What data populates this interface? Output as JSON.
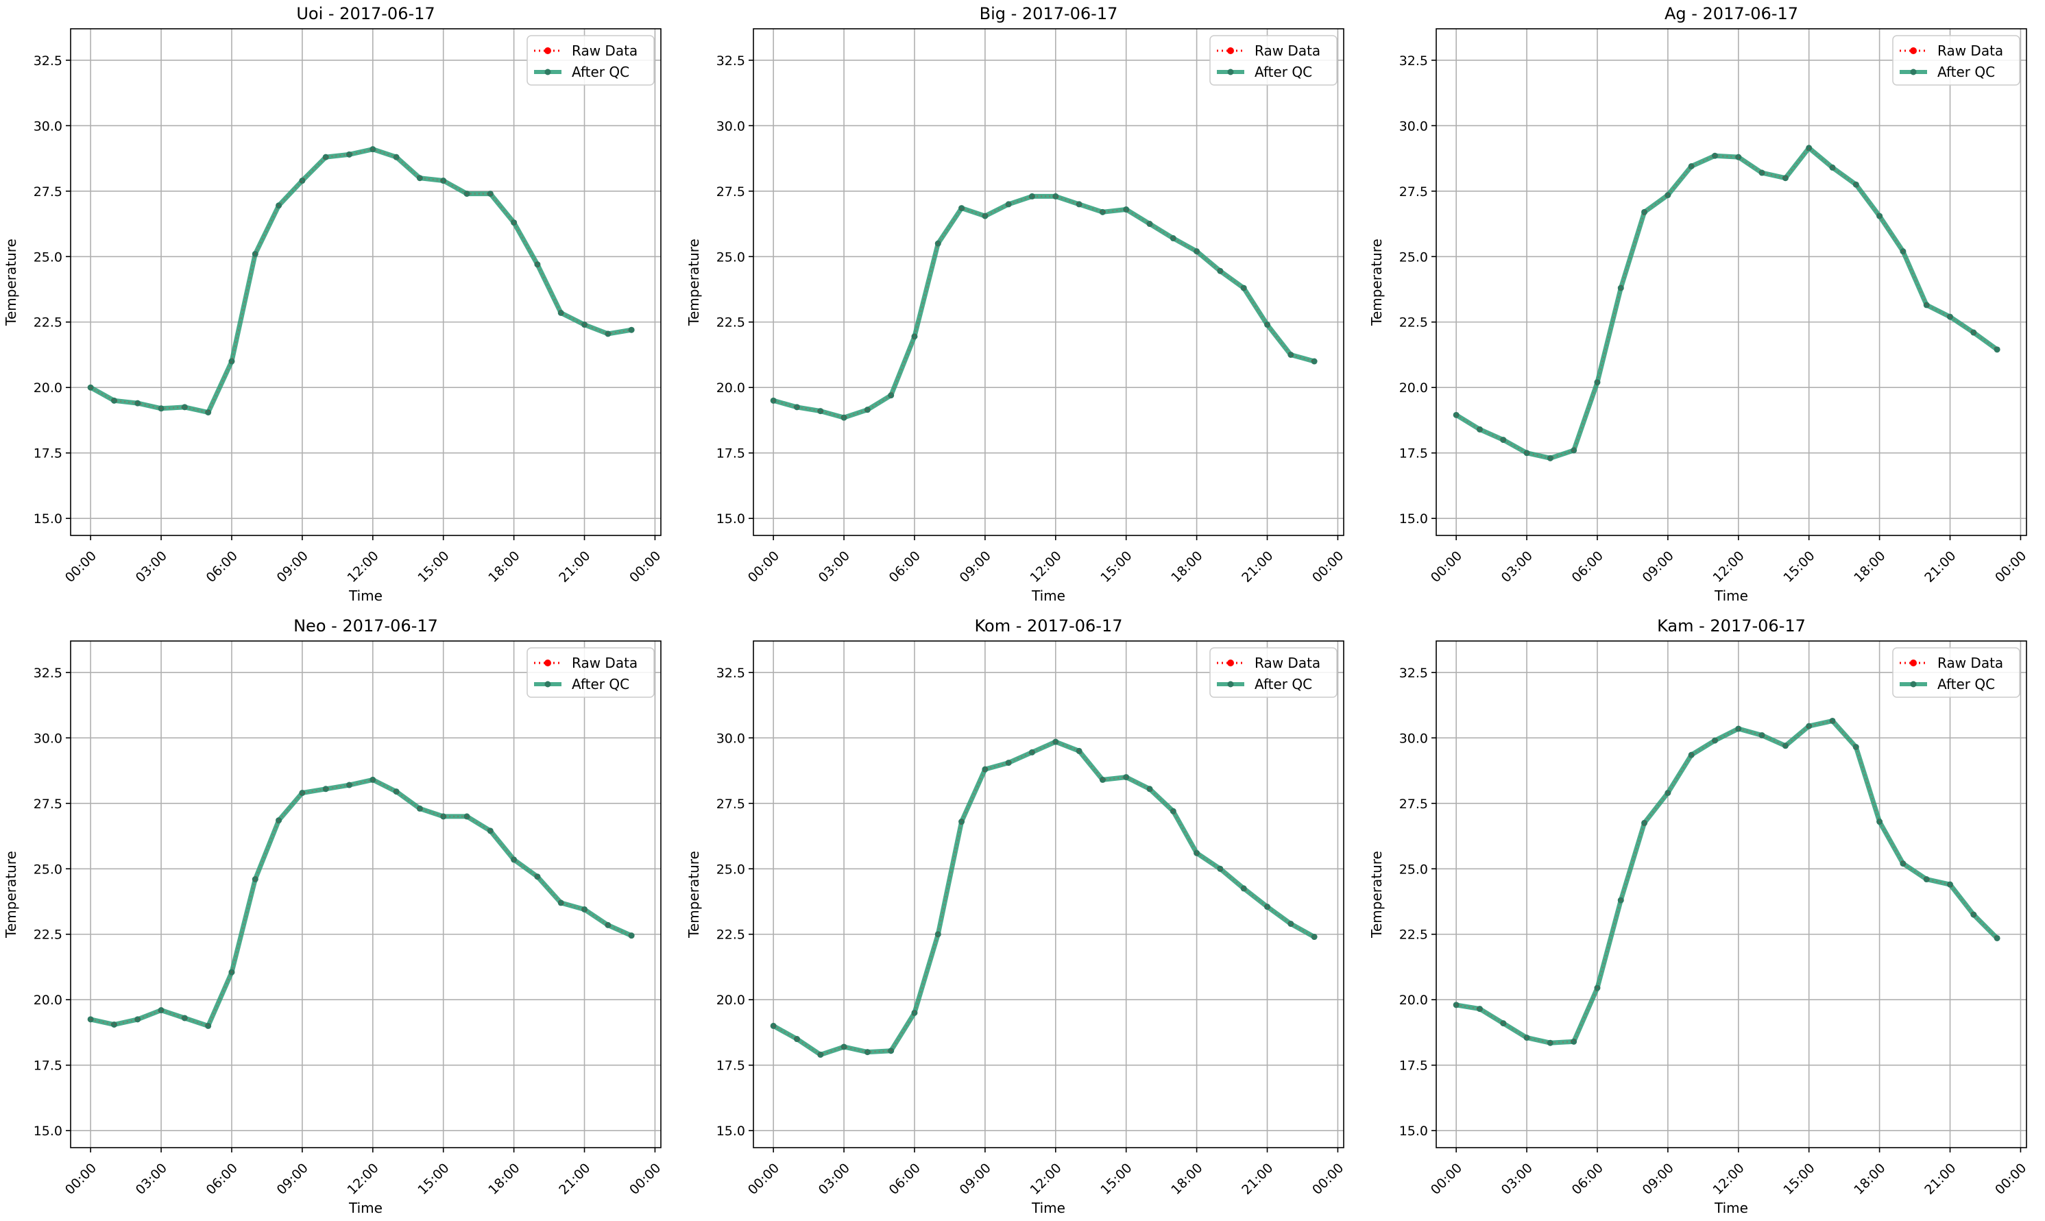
{
  "colors": {
    "raw": "#ff0000",
    "after_qc": "#2a9d78",
    "after_qc_marker": "#2f7a62",
    "grid": "#b0b0b0",
    "axis": "#000000",
    "legend_border": "#cccccc"
  },
  "chart_data": [
    {
      "type": "line",
      "title": "Uoi - 2017-06-17",
      "xlabel": "Time",
      "ylabel": "Temperature",
      "xlim": [
        "-00:51",
        "24:15"
      ],
      "ylim": [
        14.35,
        33.7
      ],
      "grid": true,
      "legend_placement": "top-right",
      "x_ticks": [
        "00:00",
        "03:00",
        "06:00",
        "09:00",
        "12:00",
        "15:00",
        "18:00",
        "21:00",
        "00:00"
      ],
      "y_ticks": [
        "15.0",
        "17.5",
        "20.0",
        "22.5",
        "25.0",
        "27.5",
        "30.0",
        "32.5"
      ],
      "x": [
        "00:00",
        "01:00",
        "02:00",
        "03:00",
        "04:00",
        "05:00",
        "06:00",
        "07:00",
        "08:00",
        "09:00",
        "10:00",
        "11:00",
        "12:00",
        "13:00",
        "14:00",
        "15:00",
        "16:00",
        "17:00",
        "18:00",
        "19:00",
        "20:00",
        "21:00",
        "22:00",
        "23:00"
      ],
      "series": [
        {
          "name": "Raw Data",
          "values": [
            20.0,
            19.5,
            19.4,
            19.2,
            19.25,
            19.05,
            21.0,
            25.1,
            26.95,
            27.9,
            28.8,
            28.9,
            29.1,
            28.8,
            28.0,
            27.9,
            27.4,
            27.4,
            26.3,
            24.7,
            22.85,
            22.4,
            22.05,
            22.2
          ]
        },
        {
          "name": "After QC",
          "values": [
            20.0,
            19.5,
            19.4,
            19.2,
            19.25,
            19.05,
            21.0,
            25.1,
            26.95,
            27.9,
            28.8,
            28.9,
            29.1,
            28.8,
            28.0,
            27.9,
            27.4,
            27.4,
            26.3,
            24.7,
            22.85,
            22.4,
            22.05,
            22.2
          ]
        }
      ]
    },
    {
      "type": "line",
      "title": "Big - 2017-06-17",
      "xlabel": "Time",
      "ylabel": "Temperature",
      "xlim": [
        "-00:51",
        "24:15"
      ],
      "ylim": [
        14.35,
        33.7
      ],
      "grid": true,
      "legend_placement": "top-right",
      "x_ticks": [
        "00:00",
        "03:00",
        "06:00",
        "09:00",
        "12:00",
        "15:00",
        "18:00",
        "21:00",
        "00:00"
      ],
      "y_ticks": [
        "15.0",
        "17.5",
        "20.0",
        "22.5",
        "25.0",
        "27.5",
        "30.0",
        "32.5"
      ],
      "x": [
        "00:00",
        "01:00",
        "02:00",
        "03:00",
        "04:00",
        "05:00",
        "06:00",
        "07:00",
        "08:00",
        "09:00",
        "10:00",
        "11:00",
        "12:00",
        "13:00",
        "14:00",
        "15:00",
        "16:00",
        "17:00",
        "18:00",
        "19:00",
        "20:00",
        "21:00",
        "22:00",
        "23:00"
      ],
      "series": [
        {
          "name": "Raw Data",
          "values": [
            19.5,
            19.25,
            19.1,
            18.85,
            19.15,
            19.7,
            21.95,
            25.5,
            26.85,
            26.55,
            27.0,
            27.3,
            27.3,
            27.0,
            26.7,
            26.8,
            26.25,
            25.7,
            25.2,
            24.45,
            23.8,
            22.4,
            21.25,
            21.0
          ]
        },
        {
          "name": "After QC",
          "values": [
            19.5,
            19.25,
            19.1,
            18.85,
            19.15,
            19.7,
            21.95,
            25.5,
            26.85,
            26.55,
            27.0,
            27.3,
            27.3,
            27.0,
            26.7,
            26.8,
            26.25,
            25.7,
            25.2,
            24.45,
            23.8,
            22.4,
            21.25,
            21.0
          ]
        }
      ]
    },
    {
      "type": "line",
      "title": "Ag - 2017-06-17",
      "xlabel": "Time",
      "ylabel": "Temperature",
      "xlim": [
        "-00:51",
        "24:15"
      ],
      "ylim": [
        14.35,
        33.7
      ],
      "grid": true,
      "legend_placement": "top-right",
      "x_ticks": [
        "00:00",
        "03:00",
        "06:00",
        "09:00",
        "12:00",
        "15:00",
        "18:00",
        "21:00",
        "00:00"
      ],
      "y_ticks": [
        "15.0",
        "17.5",
        "20.0",
        "22.5",
        "25.0",
        "27.5",
        "30.0",
        "32.5"
      ],
      "x": [
        "00:00",
        "01:00",
        "02:00",
        "03:00",
        "04:00",
        "05:00",
        "06:00",
        "07:00",
        "08:00",
        "09:00",
        "10:00",
        "11:00",
        "12:00",
        "13:00",
        "14:00",
        "15:00",
        "16:00",
        "17:00",
        "18:00",
        "19:00",
        "20:00",
        "21:00",
        "22:00",
        "23:00"
      ],
      "series": [
        {
          "name": "Raw Data",
          "values": [
            18.95,
            18.4,
            18.0,
            17.5,
            17.3,
            17.6,
            20.2,
            23.8,
            26.7,
            27.35,
            28.45,
            28.85,
            28.8,
            28.2,
            28.0,
            29.15,
            28.4,
            27.75,
            26.55,
            25.2,
            23.15,
            22.7,
            22.1,
            21.45
          ]
        },
        {
          "name": "After QC",
          "values": [
            18.95,
            18.4,
            18.0,
            17.5,
            17.3,
            17.6,
            20.2,
            23.8,
            26.7,
            27.35,
            28.45,
            28.85,
            28.8,
            28.2,
            28.0,
            29.15,
            28.4,
            27.75,
            26.55,
            25.2,
            23.15,
            22.7,
            22.1,
            21.45
          ]
        }
      ]
    },
    {
      "type": "line",
      "title": "Neo - 2017-06-17",
      "xlabel": "Time",
      "ylabel": "Temperature",
      "xlim": [
        "-00:51",
        "24:15"
      ],
      "ylim": [
        14.35,
        33.7
      ],
      "grid": true,
      "legend_placement": "top-right",
      "x_ticks": [
        "00:00",
        "03:00",
        "06:00",
        "09:00",
        "12:00",
        "15:00",
        "18:00",
        "21:00",
        "00:00"
      ],
      "y_ticks": [
        "15.0",
        "17.5",
        "20.0",
        "22.5",
        "25.0",
        "27.5",
        "30.0",
        "32.5"
      ],
      "x": [
        "00:00",
        "01:00",
        "02:00",
        "03:00",
        "04:00",
        "05:00",
        "06:00",
        "07:00",
        "08:00",
        "09:00",
        "10:00",
        "11:00",
        "12:00",
        "13:00",
        "14:00",
        "15:00",
        "16:00",
        "17:00",
        "18:00",
        "19:00",
        "20:00",
        "21:00",
        "22:00",
        "23:00"
      ],
      "series": [
        {
          "name": "Raw Data",
          "values": [
            19.25,
            19.05,
            19.25,
            19.6,
            19.3,
            19.0,
            21.05,
            24.6,
            26.85,
            27.9,
            28.05,
            28.2,
            28.4,
            27.95,
            27.3,
            27.0,
            27.0,
            26.45,
            25.35,
            24.7,
            23.7,
            23.45,
            22.85,
            22.45
          ]
        },
        {
          "name": "After QC",
          "values": [
            19.25,
            19.05,
            19.25,
            19.6,
            19.3,
            19.0,
            21.05,
            24.6,
            26.85,
            27.9,
            28.05,
            28.2,
            28.4,
            27.95,
            27.3,
            27.0,
            27.0,
            26.45,
            25.35,
            24.7,
            23.7,
            23.45,
            22.85,
            22.45
          ]
        }
      ]
    },
    {
      "type": "line",
      "title": "Kom - 2017-06-17",
      "xlabel": "Time",
      "ylabel": "Temperature",
      "xlim": [
        "-00:51",
        "24:15"
      ],
      "ylim": [
        14.35,
        33.7
      ],
      "grid": true,
      "legend_placement": "top-right",
      "x_ticks": [
        "00:00",
        "03:00",
        "06:00",
        "09:00",
        "12:00",
        "15:00",
        "18:00",
        "21:00",
        "00:00"
      ],
      "y_ticks": [
        "15.0",
        "17.5",
        "20.0",
        "22.5",
        "25.0",
        "27.5",
        "30.0",
        "32.5"
      ],
      "x": [
        "00:00",
        "01:00",
        "02:00",
        "03:00",
        "04:00",
        "05:00",
        "06:00",
        "07:00",
        "08:00",
        "09:00",
        "10:00",
        "11:00",
        "12:00",
        "13:00",
        "14:00",
        "15:00",
        "16:00",
        "17:00",
        "18:00",
        "19:00",
        "20:00",
        "21:00",
        "22:00",
        "23:00"
      ],
      "series": [
        {
          "name": "Raw Data",
          "values": [
            19.0,
            18.5,
            17.9,
            18.2,
            18.0,
            18.05,
            19.5,
            22.5,
            26.8,
            28.8,
            29.05,
            29.45,
            29.85,
            29.5,
            28.4,
            28.5,
            28.05,
            27.2,
            25.6,
            25.0,
            24.25,
            23.55,
            22.9,
            22.4
          ]
        },
        {
          "name": "After QC",
          "values": [
            19.0,
            18.5,
            17.9,
            18.2,
            18.0,
            18.05,
            19.5,
            22.5,
            26.8,
            28.8,
            29.05,
            29.45,
            29.85,
            29.5,
            28.4,
            28.5,
            28.05,
            27.2,
            25.6,
            25.0,
            24.25,
            23.55,
            22.9,
            22.4
          ]
        }
      ]
    },
    {
      "type": "line",
      "title": "Kam - 2017-06-17",
      "xlabel": "Time",
      "ylabel": "Temperature",
      "xlim": [
        "-00:51",
        "24:15"
      ],
      "ylim": [
        14.35,
        33.7
      ],
      "grid": true,
      "legend_placement": "top-right",
      "x_ticks": [
        "00:00",
        "03:00",
        "06:00",
        "09:00",
        "12:00",
        "15:00",
        "18:00",
        "21:00",
        "00:00"
      ],
      "y_ticks": [
        "15.0",
        "17.5",
        "20.0",
        "22.5",
        "25.0",
        "27.5",
        "30.0",
        "32.5"
      ],
      "x": [
        "00:00",
        "01:00",
        "02:00",
        "03:00",
        "04:00",
        "05:00",
        "06:00",
        "07:00",
        "08:00",
        "09:00",
        "10:00",
        "11:00",
        "12:00",
        "13:00",
        "14:00",
        "15:00",
        "16:00",
        "17:00",
        "18:00",
        "19:00",
        "20:00",
        "21:00",
        "22:00",
        "23:00"
      ],
      "series": [
        {
          "name": "Raw Data",
          "values": [
            19.8,
            19.65,
            19.1,
            18.55,
            18.35,
            18.4,
            20.45,
            23.8,
            26.75,
            27.9,
            29.35,
            29.9,
            30.35,
            30.1,
            29.7,
            30.45,
            30.65,
            29.65,
            26.8,
            25.2,
            24.6,
            24.4,
            23.25,
            22.35
          ]
        },
        {
          "name": "After QC",
          "values": [
            19.8,
            19.65,
            19.1,
            18.55,
            18.35,
            18.4,
            20.45,
            23.8,
            26.75,
            27.9,
            29.35,
            29.9,
            30.35,
            30.1,
            29.7,
            30.45,
            30.65,
            29.65,
            26.8,
            25.2,
            24.6,
            24.4,
            23.25,
            22.35
          ]
        }
      ]
    }
  ]
}
